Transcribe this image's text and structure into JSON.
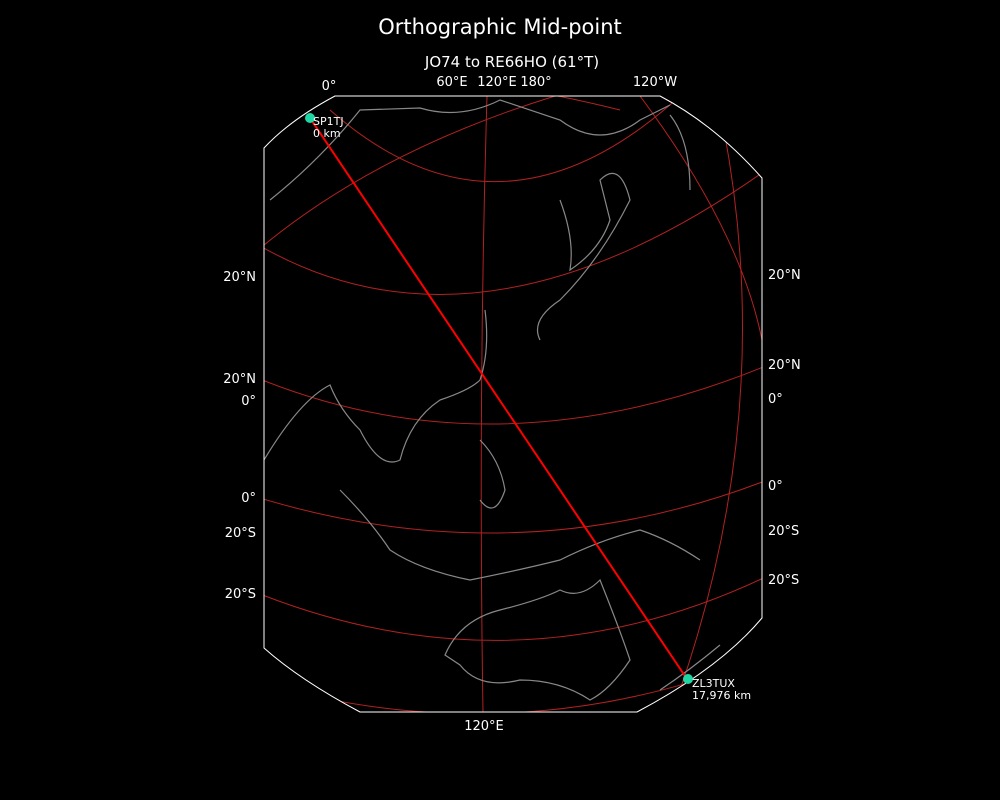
{
  "title": "Orthographic Mid-point",
  "subtitle": "JO74 to RE66HO (61°T)",
  "colors": {
    "background": "#000000",
    "path": "#ff0000",
    "graticule": "#b22222",
    "coast": "#888888",
    "marker": "#1fd7a4",
    "border": "#ffffff"
  },
  "top_labels": [
    "0°",
    "60°E",
    "120°E",
    "180°",
    "120°W"
  ],
  "bottom_labels": [
    "120°E"
  ],
  "left_labels": [
    "20°N",
    "20°N",
    "0°",
    "0°",
    "20°S",
    "20°S"
  ],
  "right_labels": [
    "20°N",
    "20°N",
    "0°",
    "0°",
    "20°S",
    "20°S"
  ],
  "start": {
    "call": "SP1TJ",
    "distance": "0 km",
    "locator": "JO74"
  },
  "end": {
    "call": "ZL3TUX",
    "distance": "17,976 km",
    "locator": "RE66HO"
  },
  "bearing": "61°T"
}
